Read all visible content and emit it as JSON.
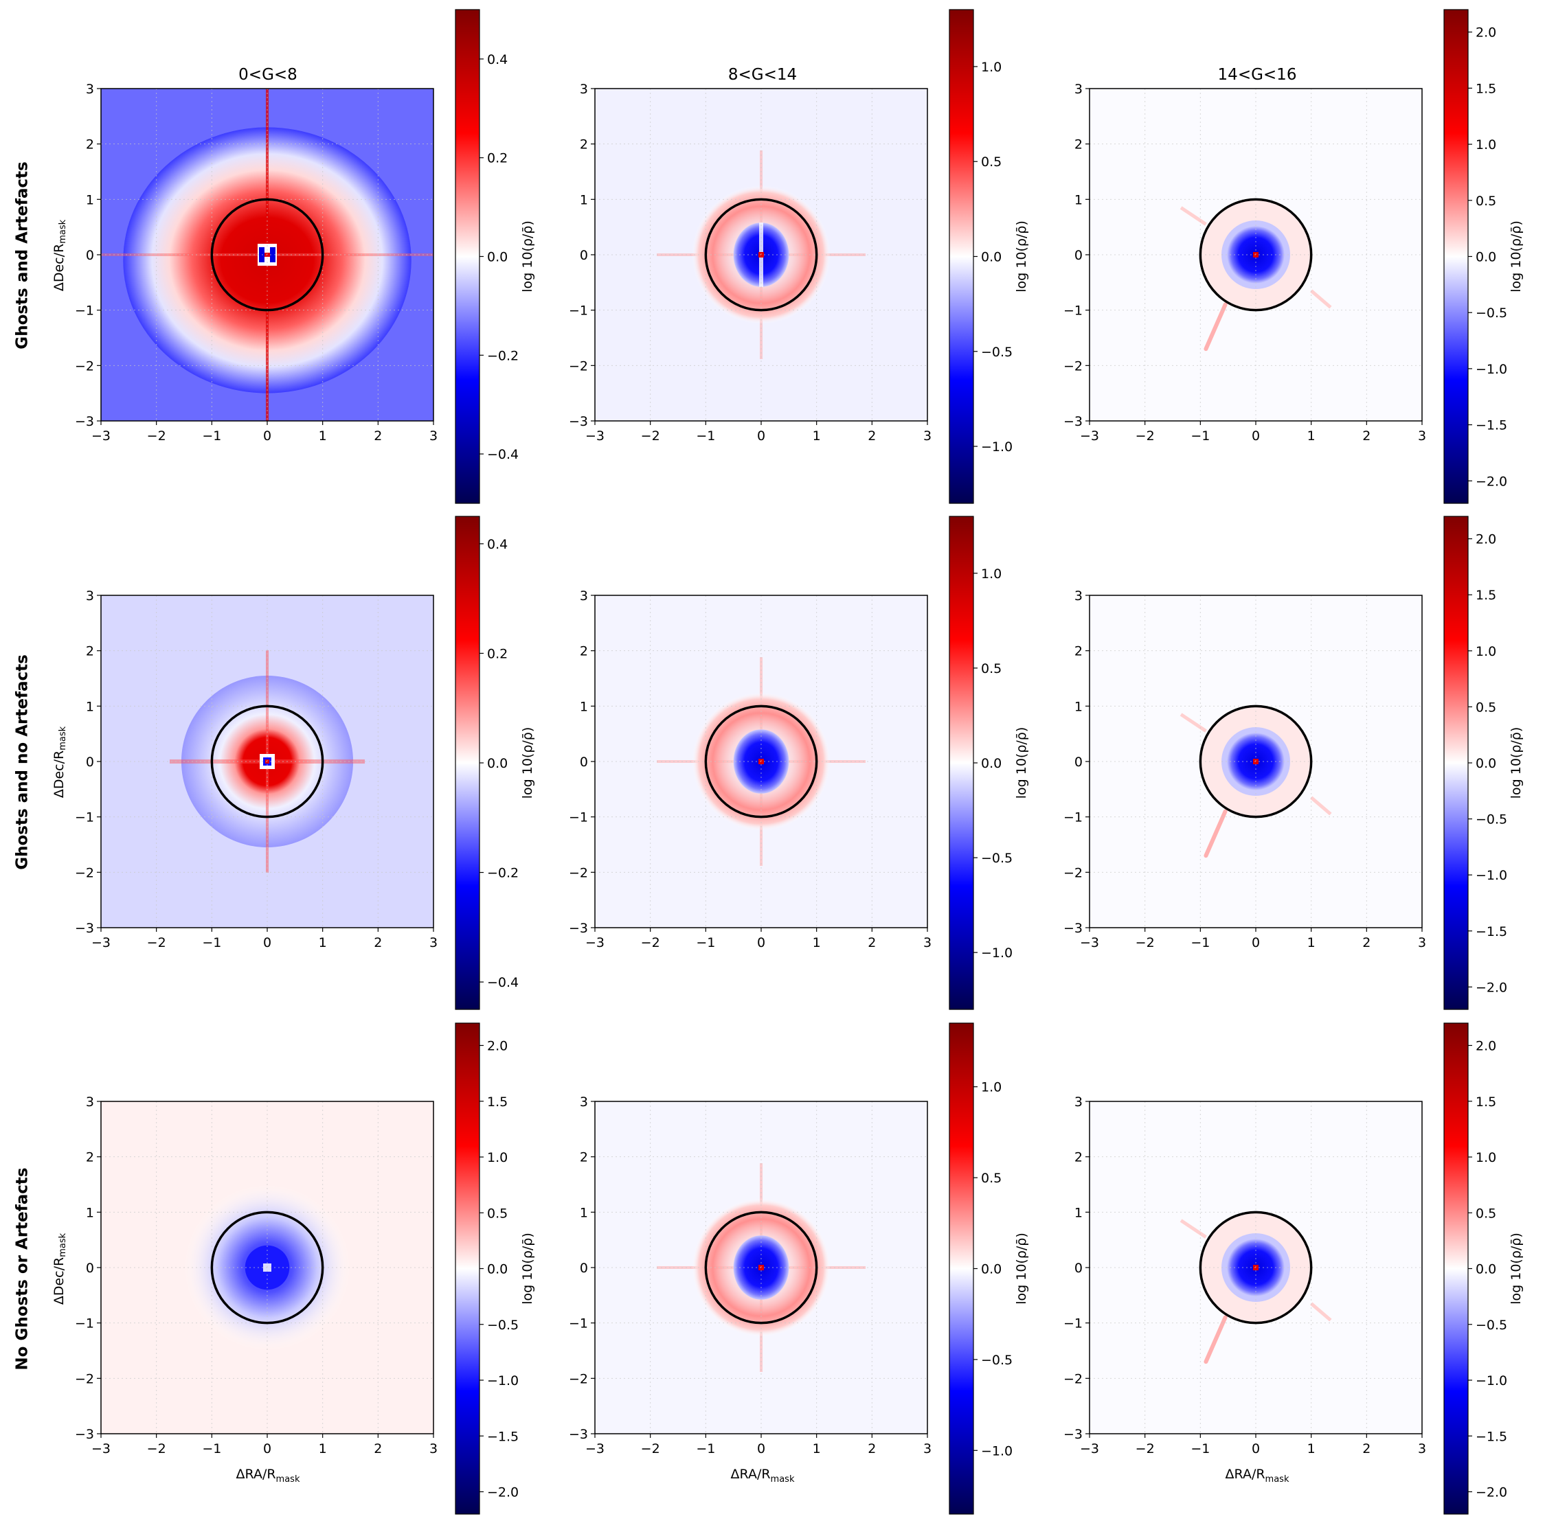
{
  "row_labels": [
    "Ghosts and Artefacts",
    "Ghosts and no Artefacts",
    "No Ghosts or Artefacts"
  ],
  "column_titles": [
    "0<G<8",
    "8<G<14",
    "14<G<16"
  ],
  "x_axis_label": "ΔRA/R",
  "x_axis_label_sub": "mask",
  "y_axis_label": "ΔDec/R",
  "y_axis_label_sub": "mask",
  "colorbar_label": "log 10(ρ/ρ̄)",
  "colors": {
    "low": "#000050",
    "mid_low": "#0000ff",
    "mid": "#ffffff",
    "mid_high": "#ff0000",
    "high": "#800000",
    "circle": "#000000"
  },
  "chart_data": [
    {
      "type": "heatmap",
      "row": "Ghosts and Artefacts",
      "title": "0<G<8",
      "xlim": [
        -3,
        3
      ],
      "ylim": [
        -3,
        3
      ],
      "xticks": [
        -3,
        -2,
        -1,
        0,
        1,
        2,
        3
      ],
      "yticks": [
        -3,
        -2,
        -1,
        0,
        1,
        2,
        3
      ],
      "mask_circle_radius": 1,
      "colorbar": {
        "range": [
          -0.5,
          0.5
        ],
        "ticks": [
          -0.4,
          -0.2,
          0.0,
          0.2,
          0.4
        ]
      },
      "xlabel_shown": false,
      "ylabel_shown": true
    },
    {
      "type": "heatmap",
      "row": "Ghosts and Artefacts",
      "title": "8<G<14",
      "xlim": [
        -3,
        3
      ],
      "ylim": [
        -3,
        3
      ],
      "xticks": [
        -3,
        -2,
        -1,
        0,
        1,
        2,
        3
      ],
      "yticks": [
        -3,
        -2,
        -1,
        0,
        1,
        2,
        3
      ],
      "mask_circle_radius": 1,
      "colorbar": {
        "range": [
          -1.3,
          1.3
        ],
        "ticks": [
          -1.0,
          -0.5,
          0.0,
          0.5,
          1.0
        ]
      },
      "xlabel_shown": false,
      "ylabel_shown": false
    },
    {
      "type": "heatmap",
      "row": "Ghosts and Artefacts",
      "title": "14<G<16",
      "xlim": [
        -3,
        3
      ],
      "ylim": [
        -3,
        3
      ],
      "xticks": [
        -3,
        -2,
        -1,
        0,
        1,
        2,
        3
      ],
      "yticks": [
        -3,
        -2,
        -1,
        0,
        1,
        2,
        3
      ],
      "mask_circle_radius": 1,
      "colorbar": {
        "range": [
          -2.2,
          2.2
        ],
        "ticks": [
          -2.0,
          -1.5,
          -1.0,
          -0.5,
          0.0,
          0.5,
          1.0,
          1.5,
          2.0
        ]
      },
      "xlabel_shown": false,
      "ylabel_shown": false
    },
    {
      "type": "heatmap",
      "row": "Ghosts and no Artefacts",
      "title": "",
      "xlim": [
        -3,
        3
      ],
      "ylim": [
        -3,
        3
      ],
      "xticks": [
        -3,
        -2,
        -1,
        0,
        1,
        2,
        3
      ],
      "yticks": [
        -3,
        -2,
        -1,
        0,
        1,
        2,
        3
      ],
      "mask_circle_radius": 1,
      "colorbar": {
        "range": [
          -0.45,
          0.45
        ],
        "ticks": [
          -0.4,
          -0.2,
          0.0,
          0.2,
          0.4
        ]
      },
      "xlabel_shown": false,
      "ylabel_shown": true
    },
    {
      "type": "heatmap",
      "row": "Ghosts and no Artefacts",
      "title": "",
      "xlim": [
        -3,
        3
      ],
      "ylim": [
        -3,
        3
      ],
      "xticks": [
        -3,
        -2,
        -1,
        0,
        1,
        2,
        3
      ],
      "yticks": [
        -3,
        -2,
        -1,
        0,
        1,
        2,
        3
      ],
      "mask_circle_radius": 1,
      "colorbar": {
        "range": [
          -1.3,
          1.3
        ],
        "ticks": [
          -1.0,
          -0.5,
          0.0,
          0.5,
          1.0
        ]
      },
      "xlabel_shown": false,
      "ylabel_shown": false
    },
    {
      "type": "heatmap",
      "row": "Ghosts and no Artefacts",
      "title": "",
      "xlim": [
        -3,
        3
      ],
      "ylim": [
        -3,
        3
      ],
      "xticks": [
        -3,
        -2,
        -1,
        0,
        1,
        2,
        3
      ],
      "yticks": [
        -3,
        -2,
        -1,
        0,
        1,
        2,
        3
      ],
      "mask_circle_radius": 1,
      "colorbar": {
        "range": [
          -2.2,
          2.2
        ],
        "ticks": [
          -2.0,
          -1.5,
          -1.0,
          -0.5,
          0.0,
          0.5,
          1.0,
          1.5,
          2.0
        ]
      },
      "xlabel_shown": false,
      "ylabel_shown": false
    },
    {
      "type": "heatmap",
      "row": "No Ghosts or Artefacts",
      "title": "",
      "xlim": [
        -3,
        3
      ],
      "ylim": [
        -3,
        3
      ],
      "xticks": [
        -3,
        -2,
        -1,
        0,
        1,
        2,
        3
      ],
      "yticks": [
        -3,
        -2,
        -1,
        0,
        1,
        2,
        3
      ],
      "mask_circle_radius": 1,
      "colorbar": {
        "range": [
          -2.2,
          2.2
        ],
        "ticks": [
          -2.0,
          -1.5,
          -1.0,
          -0.5,
          0.0,
          0.5,
          1.0,
          1.5,
          2.0
        ]
      },
      "xlabel_shown": true,
      "ylabel_shown": true
    },
    {
      "type": "heatmap",
      "row": "No Ghosts or Artefacts",
      "title": "",
      "xlim": [
        -3,
        3
      ],
      "ylim": [
        -3,
        3
      ],
      "xticks": [
        -3,
        -2,
        -1,
        0,
        1,
        2,
        3
      ],
      "yticks": [
        -3,
        -2,
        -1,
        0,
        1,
        2,
        3
      ],
      "mask_circle_radius": 1,
      "colorbar": {
        "range": [
          -1.35,
          1.35
        ],
        "ticks": [
          -1.0,
          -0.5,
          0.0,
          0.5,
          1.0
        ]
      },
      "xlabel_shown": true,
      "ylabel_shown": false
    },
    {
      "type": "heatmap",
      "row": "No Ghosts or Artefacts",
      "title": "",
      "xlim": [
        -3,
        3
      ],
      "ylim": [
        -3,
        3
      ],
      "xticks": [
        -3,
        -2,
        -1,
        0,
        1,
        2,
        3
      ],
      "yticks": [
        -3,
        -2,
        -1,
        0,
        1,
        2,
        3
      ],
      "mask_circle_radius": 1,
      "colorbar": {
        "range": [
          -2.2,
          2.2
        ],
        "ticks": [
          -2.0,
          -1.5,
          -1.0,
          -0.5,
          0.0,
          0.5,
          1.0,
          1.5,
          2.0
        ]
      },
      "xlabel_shown": true,
      "ylabel_shown": false
    }
  ]
}
